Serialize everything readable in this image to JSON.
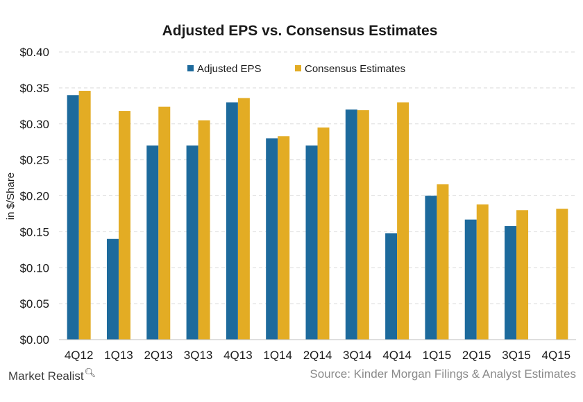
{
  "footer": {
    "brand": "Market Realist",
    "brand_icon": "magnifier-icon",
    "source": "Source: Kinder Morgan Filings & Analyst Estimates"
  },
  "chart_data": {
    "type": "bar",
    "title": "Adjusted EPS vs. Consensus Estimates",
    "ylabel": "in $/Share",
    "xlabel": "",
    "ylim": [
      0,
      0.4
    ],
    "yticks": [
      "$0.00",
      "$0.05",
      "$0.10",
      "$0.15",
      "$0.20",
      "$0.25",
      "$0.30",
      "$0.35",
      "$0.40"
    ],
    "ytick_values": [
      0,
      0.05,
      0.1,
      0.15,
      0.2,
      0.25,
      0.3,
      0.35,
      0.4
    ],
    "grid": true,
    "legend_position": "top-center",
    "categories": [
      "4Q12",
      "1Q13",
      "2Q13",
      "3Q13",
      "4Q13",
      "1Q14",
      "2Q14",
      "3Q14",
      "4Q14",
      "1Q15",
      "2Q15",
      "3Q15",
      "4Q15"
    ],
    "series": [
      {
        "name": "Adjusted EPS",
        "color": "#1d6a9c",
        "values": [
          0.34,
          0.14,
          0.27,
          0.27,
          0.33,
          0.28,
          0.27,
          0.32,
          0.148,
          0.2,
          0.167,
          0.158,
          null
        ]
      },
      {
        "name": "Consensus Estimates",
        "color": "#e3ac24",
        "values": [
          0.346,
          0.318,
          0.324,
          0.305,
          0.336,
          0.283,
          0.295,
          0.319,
          0.33,
          0.216,
          0.188,
          0.18,
          0.182
        ]
      }
    ]
  }
}
